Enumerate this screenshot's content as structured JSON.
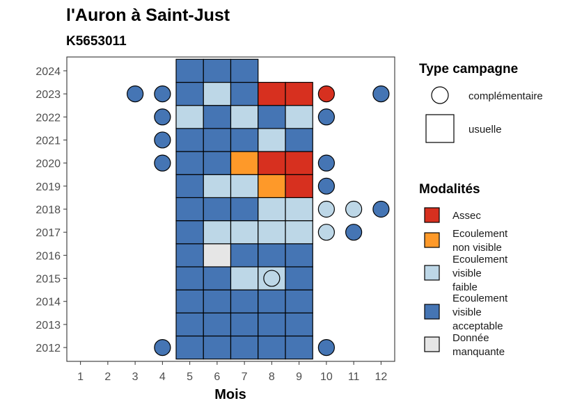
{
  "chart_data": {
    "type": "heatmap",
    "title": "l'Auron à Saint-Just",
    "subtitle": "K5653011",
    "xlabel": "Mois",
    "ylabel": "",
    "x_ticks": [
      "1",
      "2",
      "3",
      "4",
      "5",
      "6",
      "7",
      "8",
      "9",
      "10",
      "11",
      "12"
    ],
    "y_ticks": [
      "2012",
      "2013",
      "2014",
      "2015",
      "2016",
      "2017",
      "2018",
      "2019",
      "2020",
      "2021",
      "2022",
      "2023",
      "2024"
    ],
    "xlim": [
      0.5,
      12.5
    ],
    "ylim": [
      2011.4,
      2024.6
    ],
    "grid": false,
    "colors": {
      "Assec": "#d7301f",
      "Ecoulement non visible": "#fe9929",
      "Ecoulement visible faible": "#bdd7e7",
      "Ecoulement visible acceptable": "#4575b4",
      "Donnée manquante": "#e6e6e6"
    },
    "codes": {
      "A": "Assec",
      "N": "Ecoulement non visible",
      "F": "Ecoulement visible faible",
      "V": "Ecoulement visible acceptable",
      "M": "Donnée manquante"
    },
    "usuelle": {
      "2024": {
        "5": "V",
        "6": "V",
        "7": "V"
      },
      "2023": {
        "5": "V",
        "6": "F",
        "7": "V",
        "8": "A",
        "9": "A"
      },
      "2022": {
        "5": "F",
        "6": "V",
        "7": "F",
        "8": "V",
        "9": "F"
      },
      "2021": {
        "5": "V",
        "6": "V",
        "7": "V",
        "8": "F",
        "9": "V"
      },
      "2020": {
        "5": "V",
        "6": "V",
        "7": "N",
        "8": "A",
        "9": "A"
      },
      "2019": {
        "5": "V",
        "6": "F",
        "7": "F",
        "8": "N",
        "9": "A"
      },
      "2018": {
        "5": "V",
        "6": "V",
        "7": "V",
        "8": "F",
        "9": "F"
      },
      "2017": {
        "5": "V",
        "6": "F",
        "7": "F",
        "8": "F",
        "9": "F"
      },
      "2016": {
        "5": "V",
        "6": "M",
        "7": "V",
        "8": "V",
        "9": "V"
      },
      "2015": {
        "5": "V",
        "6": "V",
        "7": "F",
        "8": "F",
        "9": "V"
      },
      "2014": {
        "5": "V",
        "6": "V",
        "7": "V",
        "8": "V",
        "9": "V"
      },
      "2013": {
        "5": "V",
        "6": "V",
        "7": "V",
        "8": "V",
        "9": "V"
      },
      "2012": {
        "5": "V",
        "6": "V",
        "7": "V",
        "8": "V",
        "9": "V"
      }
    },
    "complementaire": [
      {
        "year": 2023,
        "month": 3,
        "code": "V"
      },
      {
        "year": 2023,
        "month": 4,
        "code": "V"
      },
      {
        "year": 2023,
        "month": 10,
        "code": "A"
      },
      {
        "year": 2023,
        "month": 12,
        "code": "V"
      },
      {
        "year": 2022,
        "month": 4,
        "code": "V"
      },
      {
        "year": 2022,
        "month": 10,
        "code": "V"
      },
      {
        "year": 2021,
        "month": 4,
        "code": "V"
      },
      {
        "year": 2020,
        "month": 4,
        "code": "V"
      },
      {
        "year": 2020,
        "month": 10,
        "code": "V"
      },
      {
        "year": 2019,
        "month": 10,
        "code": "V"
      },
      {
        "year": 2018,
        "month": 10,
        "code": "F"
      },
      {
        "year": 2018,
        "month": 11,
        "code": "F"
      },
      {
        "year": 2018,
        "month": 12,
        "code": "V"
      },
      {
        "year": 2017,
        "month": 10,
        "code": "F"
      },
      {
        "year": 2017,
        "month": 11,
        "code": "V"
      },
      {
        "year": 2015,
        "month": 8,
        "code": "F"
      },
      {
        "year": 2012,
        "month": 4,
        "code": "V"
      },
      {
        "year": 2012,
        "month": 10,
        "code": "V"
      }
    ],
    "legend_campagne": {
      "title": "Type campagne",
      "items": [
        "complémentaire",
        "usuelle"
      ]
    },
    "legend_modalites": {
      "title": "Modalités",
      "items": [
        {
          "code": "A",
          "lines": [
            "Assec"
          ]
        },
        {
          "code": "N",
          "lines": [
            "Ecoulement",
            "non visible"
          ]
        },
        {
          "code": "F",
          "lines": [
            "Ecoulement",
            "visible",
            "faible"
          ]
        },
        {
          "code": "V",
          "lines": [
            "Ecoulement",
            "visible",
            "acceptable"
          ]
        },
        {
          "code": "M",
          "lines": [
            "Donnée",
            "manquante"
          ]
        }
      ]
    },
    "legend_position": "right"
  }
}
